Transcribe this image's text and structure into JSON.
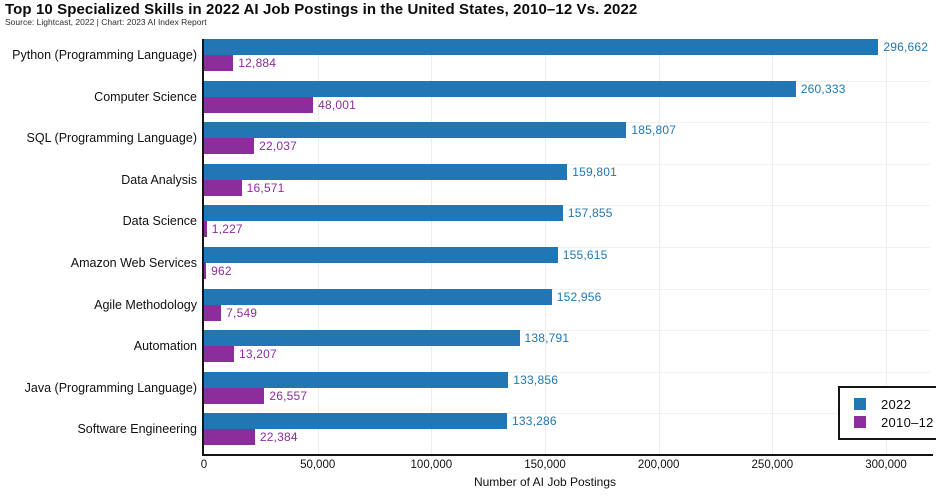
{
  "header": {
    "title": "Top 10 Specialized Skills in 2022 AI Job Postings in the United States, 2010–12 Vs. 2022",
    "source_line": "Source: Lightcast, 2022 | Chart: 2023 AI Index Report"
  },
  "chart_data": {
    "type": "bar",
    "orientation": "horizontal",
    "title": "Top 10 Specialized Skills in 2022 AI Job Postings in the United States, 2010–12 Vs. 2022",
    "subtitle": "Source: Lightcast, 2022 | Chart: 2023 AI Index Report",
    "categories": [
      "Python (Programming Language)",
      "Computer Science",
      "SQL (Programming Language)",
      "Data Analysis",
      "Data Science",
      "Amazon Web Services",
      "Agile Methodology",
      "Automation",
      "Java (Programming Language)",
      "Software Engineering"
    ],
    "series": [
      {
        "name": "2022",
        "color": "#2077b4",
        "values": [
          296662,
          260333,
          185807,
          159801,
          157855,
          155615,
          152956,
          138791,
          133856,
          133286
        ],
        "labels": [
          "296,662",
          "260,333",
          "185,807",
          "159,801",
          "157,855",
          "155,615",
          "152,956",
          "138,791",
          "133,856",
          "133,286"
        ]
      },
      {
        "name": "2010–12",
        "color": "#8c2d9c",
        "values": [
          12884,
          48001,
          22037,
          16571,
          1227,
          962,
          7549,
          13207,
          26557,
          22384
        ],
        "labels": [
          "12,884",
          "48,001",
          "22,037",
          "16,571",
          "1,227",
          "962",
          "7,549",
          "13,207",
          "26,557",
          "22,384"
        ]
      }
    ],
    "xlabel": "Number of AI Job Postings",
    "xlim": [
      0,
      300000
    ],
    "xticks": [
      0,
      50000,
      100000,
      150000,
      200000,
      250000,
      300000
    ],
    "xtick_labels": [
      "0",
      "50,000",
      "100,000",
      "150,000",
      "200,000",
      "250,000",
      "300,000"
    ],
    "grid": "light vertical gridlines at each x tick, light horizontal gridlines between category groups",
    "legend_position": "lower right",
    "value_labels": "shown at end of each bar, colored to match series"
  }
}
